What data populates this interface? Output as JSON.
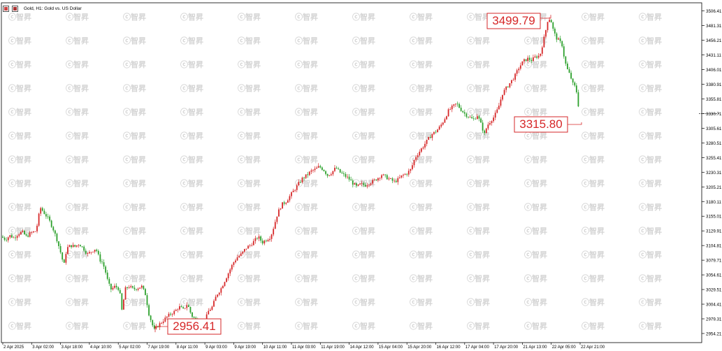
{
  "window": {
    "title": "Gold, H1:  Gold vs. US Dollar"
  },
  "colors": {
    "up": "#d62728",
    "down": "#2ca02c",
    "axis": "#000000",
    "callout_border": "#d62728",
    "callout_text": "#d62728",
    "watermark": "#d5d5d5",
    "background": "#ffffff"
  },
  "chart_data": {
    "type": "candlestick",
    "title": "Gold, H1:  Gold vs. US Dollar",
    "xlabel": "",
    "ylabel": "",
    "ylim": [
      2941.0,
      3518.0
    ],
    "y_ticks": [
      "3506.41",
      "3481.31",
      "3456.21",
      "3431.11",
      "3406.01",
      "3380.91",
      "3355.81",
      "3330.71",
      "3305.61",
      "3280.51",
      "3255.41",
      "3230.31",
      "3205.21",
      "3180.11",
      "3155.01",
      "3129.91",
      "3104.81",
      "3079.71",
      "3054.61",
      "3029.51",
      "3004.41",
      "2979.31",
      "2954.21"
    ],
    "current_price_tick": "3330.71",
    "x_ticks": [
      "2 Apr 2025",
      "3 Apr 02:00",
      "3 Apr 18:00",
      "4 Apr 10:00",
      "5 Apr 02:00",
      "7 Apr 19:00",
      "8 Apr 11:00",
      "9 Apr 03:00",
      "9 Apr 19:00",
      "10 Apr 11:00",
      "11 Apr 03:00",
      "11 Apr 19:00",
      "14 Apr 12:00",
      "15 Apr 04:00",
      "15 Apr 20:00",
      "16 Apr 12:00",
      "17 Apr 04:00",
      "17 Apr 20:00",
      "21 Apr 13:00",
      "22 Apr 05:00",
      "22 Apr 21:00"
    ],
    "close_path": [
      [
        0,
        3120
      ],
      [
        6,
        3115
      ],
      [
        12,
        3122
      ],
      [
        18,
        3118
      ],
      [
        24,
        3125
      ],
      [
        30,
        3128
      ],
      [
        36,
        3120
      ],
      [
        42,
        3126
      ],
      [
        50,
        3130
      ],
      [
        56,
        3170
      ],
      [
        62,
        3160
      ],
      [
        68,
        3150
      ],
      [
        74,
        3135
      ],
      [
        80,
        3115
      ],
      [
        86,
        3090
      ],
      [
        90,
        3070
      ],
      [
        94,
        3100
      ],
      [
        100,
        3105
      ],
      [
        106,
        3103
      ],
      [
        112,
        3108
      ],
      [
        118,
        3100
      ],
      [
        124,
        3090
      ],
      [
        130,
        3095
      ],
      [
        136,
        3100
      ],
      [
        142,
        3080
      ],
      [
        146,
        3075
      ],
      [
        150,
        3060
      ],
      [
        154,
        3040
      ],
      [
        158,
        3030
      ],
      [
        164,
        3035
      ],
      [
        170,
        3030
      ],
      [
        174,
        2990
      ],
      [
        178,
        3030
      ],
      [
        184,
        3035
      ],
      [
        190,
        3030
      ],
      [
        196,
        3032
      ],
      [
        202,
        3035
      ],
      [
        208,
        3020
      ],
      [
        212,
        2990
      ],
      [
        216,
        2975
      ],
      [
        220,
        2960
      ],
      [
        226,
        2968
      ],
      [
        232,
        2975
      ],
      [
        238,
        2982
      ],
      [
        244,
        2988
      ],
      [
        250,
        2992
      ],
      [
        256,
        3000
      ],
      [
        262,
        2995
      ],
      [
        268,
        3005
      ],
      [
        274,
        2985
      ],
      [
        280,
        2978
      ],
      [
        286,
        2975
      ],
      [
        292,
        2970
      ],
      [
        298,
        2992
      ],
      [
        304,
        3000
      ],
      [
        310,
        3020
      ],
      [
        316,
        3030
      ],
      [
        322,
        3045
      ],
      [
        328,
        3060
      ],
      [
        334,
        3075
      ],
      [
        340,
        3085
      ],
      [
        346,
        3090
      ],
      [
        352,
        3100
      ],
      [
        358,
        3105
      ],
      [
        364,
        3112
      ],
      [
        370,
        3120
      ],
      [
        376,
        3110
      ],
      [
        382,
        3115
      ],
      [
        388,
        3120
      ],
      [
        392,
        3135
      ],
      [
        398,
        3160
      ],
      [
        404,
        3175
      ],
      [
        410,
        3180
      ],
      [
        416,
        3190
      ],
      [
        422,
        3200
      ],
      [
        428,
        3210
      ],
      [
        434,
        3220
      ],
      [
        440,
        3225
      ],
      [
        446,
        3232
      ],
      [
        452,
        3235
      ],
      [
        458,
        3240
      ],
      [
        464,
        3235
      ],
      [
        470,
        3225
      ],
      [
        476,
        3230
      ],
      [
        482,
        3238
      ],
      [
        488,
        3230
      ],
      [
        494,
        3225
      ],
      [
        500,
        3220
      ],
      [
        506,
        3212
      ],
      [
        512,
        3205
      ],
      [
        518,
        3210
      ],
      [
        524,
        3208
      ],
      [
        530,
        3212
      ],
      [
        536,
        3215
      ],
      [
        542,
        3220
      ],
      [
        548,
        3226
      ],
      [
        554,
        3222
      ],
      [
        560,
        3218
      ],
      [
        566,
        3214
      ],
      [
        572,
        3218
      ],
      [
        578,
        3225
      ],
      [
        584,
        3228
      ],
      [
        590,
        3235
      ],
      [
        596,
        3255
      ],
      [
        602,
        3265
      ],
      [
        608,
        3275
      ],
      [
        614,
        3285
      ],
      [
        620,
        3295
      ],
      [
        626,
        3300
      ],
      [
        632,
        3308
      ],
      [
        638,
        3320
      ],
      [
        644,
        3335
      ],
      [
        650,
        3342
      ],
      [
        656,
        3348
      ],
      [
        662,
        3338
      ],
      [
        668,
        3330
      ],
      [
        674,
        3325
      ],
      [
        680,
        3320
      ],
      [
        686,
        3328
      ],
      [
        692,
        3310
      ],
      [
        696,
        3295
      ],
      [
        700,
        3310
      ],
      [
        706,
        3320
      ],
      [
        710,
        3325
      ],
      [
        716,
        3340
      ],
      [
        722,
        3365
      ],
      [
        728,
        3375
      ],
      [
        734,
        3385
      ],
      [
        740,
        3395
      ],
      [
        746,
        3410
      ],
      [
        752,
        3420
      ],
      [
        758,
        3425
      ],
      [
        764,
        3422
      ],
      [
        770,
        3428
      ],
      [
        776,
        3430
      ],
      [
        780,
        3450
      ],
      [
        784,
        3470
      ],
      [
        788,
        3495
      ],
      [
        792,
        3490
      ],
      [
        796,
        3470
      ],
      [
        800,
        3460
      ],
      [
        804,
        3455
      ],
      [
        808,
        3448
      ],
      [
        812,
        3420
      ],
      [
        816,
        3405
      ],
      [
        820,
        3395
      ],
      [
        824,
        3380
      ],
      [
        828,
        3375
      ],
      [
        832,
        3340
      ],
      [
        834,
        3316
      ]
    ],
    "annotations": [
      {
        "label": "3499.79",
        "value": 3499.79,
        "type": "high"
      },
      {
        "label": "3315.80",
        "value": 3315.8,
        "type": "last"
      },
      {
        "label": "2956.41",
        "value": 2956.41,
        "type": "low"
      }
    ]
  },
  "watermark": {
    "brand": "智昇",
    "prefix": "ⓒ"
  }
}
